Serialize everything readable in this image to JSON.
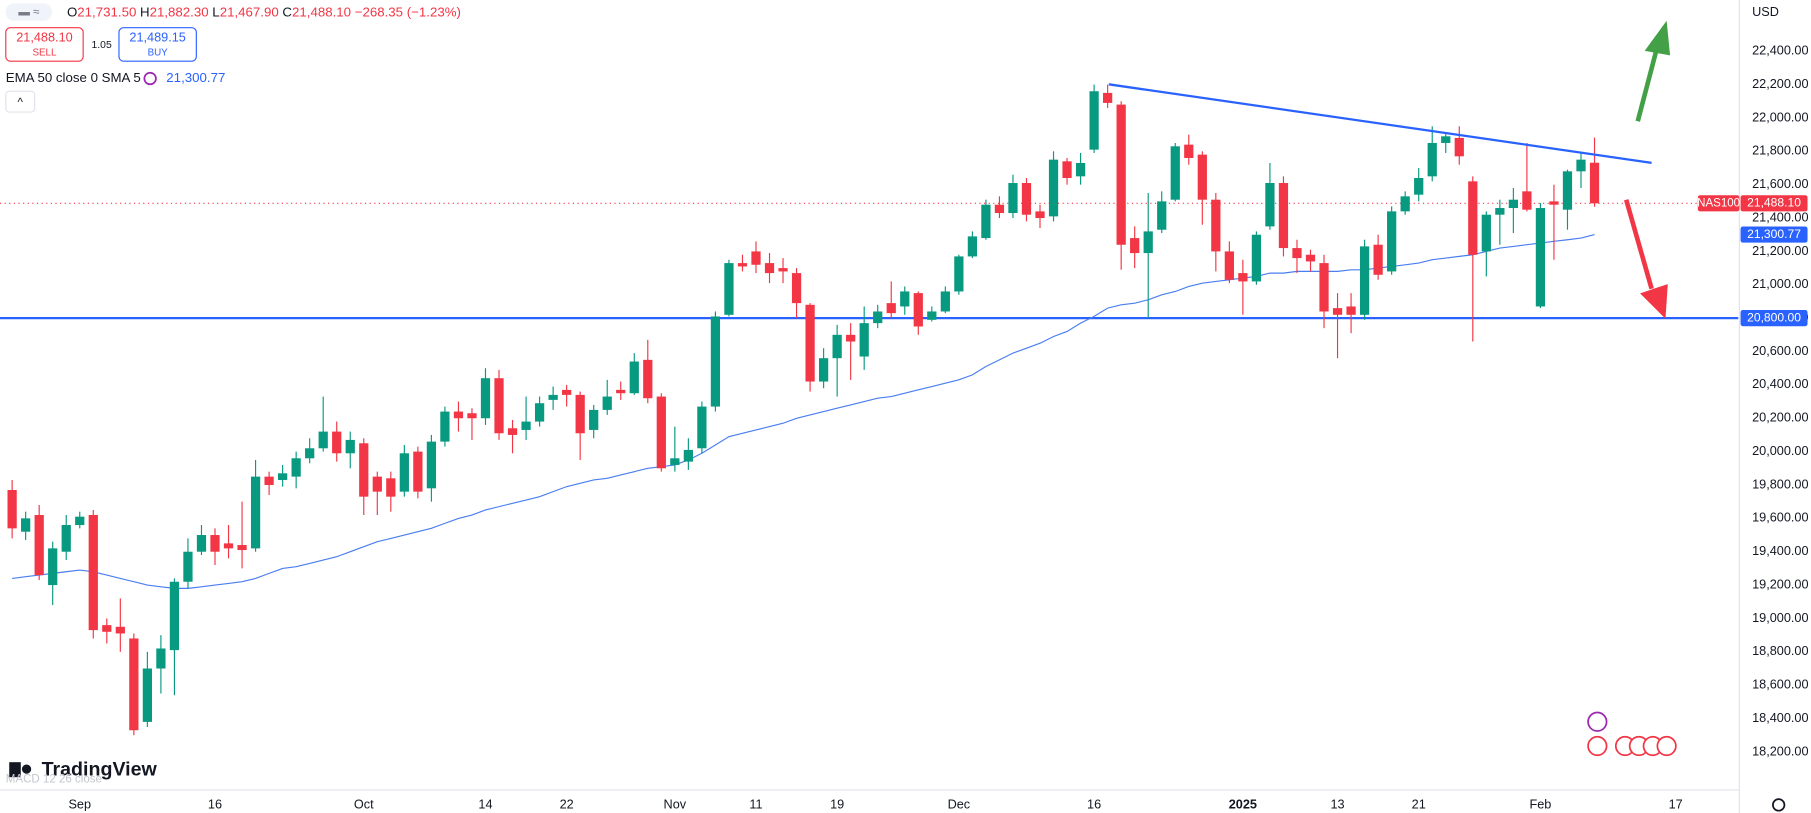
{
  "header": {
    "ohlc": [
      {
        "key": "O",
        "value": "21,731.50"
      },
      {
        "key": "H",
        "value": "21,882.30"
      },
      {
        "key": "L",
        "value": "21,467.90"
      },
      {
        "key": "C",
        "value": "21,488.10"
      }
    ],
    "change": "−268.35 (−1.23%)",
    "sell_price": "21,488.10",
    "sell": "SELL",
    "spread": "1.05",
    "buy_price": "21,489.15",
    "buy": "BUY"
  },
  "footer": {
    "logo": "TradingView",
    "indicator": "MACD 12 26 close"
  },
  "chart_data": {
    "type": "candlestick",
    "currency": "USD",
    "up_color": "#089981",
    "down_color": "#f23645",
    "ylim": [
      18000,
      22700
    ],
    "yticks": [
      {
        "value": 18200,
        "label": "18,200.00"
      },
      {
        "value": 18400,
        "label": "18,400.00"
      },
      {
        "value": 18600,
        "label": "18,600.00"
      },
      {
        "value": 18800,
        "label": "18,800.00"
      },
      {
        "value": 19000,
        "label": "19,000.00"
      },
      {
        "value": 19200,
        "label": "19,200.00"
      },
      {
        "value": 19400,
        "label": "19,400.00"
      },
      {
        "value": 19600,
        "label": "19,600.00"
      },
      {
        "value": 19800,
        "label": "19,800.00"
      },
      {
        "value": 20000,
        "label": "20,000.00"
      },
      {
        "value": 20200,
        "label": "20,200.00"
      },
      {
        "value": 20400,
        "label": "20,400.00"
      },
      {
        "value": 20600,
        "label": "20,600.00"
      },
      {
        "value": 20800,
        "label": "20,800.00"
      },
      {
        "value": 21000,
        "label": "21,000.00"
      },
      {
        "value": 21200,
        "label": "21,200.00"
      },
      {
        "value": 21400,
        "label": "21,400.00"
      },
      {
        "value": 21600,
        "label": "21,600.00"
      },
      {
        "value": 21800,
        "label": "21,800.00"
      },
      {
        "value": 22000,
        "label": "22,000.00"
      },
      {
        "value": 22200,
        "label": "22,200.00"
      },
      {
        "value": 22400,
        "label": "22,400.00"
      }
    ],
    "categories": [
      null,
      null,
      null,
      null,
      null,
      "Sep",
      null,
      null,
      null,
      null,
      null,
      null,
      null,
      null,
      null,
      "16",
      null,
      null,
      null,
      null,
      null,
      null,
      null,
      null,
      null,
      null,
      "Oct",
      null,
      null,
      null,
      null,
      null,
      null,
      null,
      null,
      "14",
      null,
      null,
      null,
      null,
      null,
      "22",
      null,
      null,
      null,
      null,
      null,
      null,
      null,
      "Nov",
      null,
      null,
      null,
      null,
      null,
      "11",
      null,
      null,
      null,
      null,
      null,
      "19",
      null,
      null,
      null,
      null,
      null,
      null,
      null,
      null,
      "Dec",
      null,
      null,
      null,
      null,
      null,
      null,
      null,
      null,
      null,
      "16",
      null,
      null,
      null,
      null,
      null,
      null,
      null,
      null,
      null,
      null,
      "2025",
      null,
      null,
      null,
      null,
      null,
      null,
      "13",
      null,
      null,
      null,
      null,
      null,
      "21",
      null,
      null,
      null,
      null,
      null,
      null,
      null,
      null,
      "Feb",
      null,
      null,
      null,
      null,
      null,
      null,
      null,
      null,
      null,
      "17"
    ],
    "open": [
      19770,
      19520,
      19620,
      19200,
      19400,
      19560,
      19620,
      18960,
      18950,
      18880,
      18380,
      18700,
      18810,
      19220,
      19400,
      19500,
      19450,
      19440,
      19420,
      19850,
      19830,
      19850,
      19960,
      20020,
      20120,
      19990,
      20050,
      19850,
      19840,
      19760,
      20000,
      19780,
      20060,
      20240,
      20230,
      20200,
      20440,
      20140,
      20130,
      20180,
      20310,
      20370,
      20340,
      20130,
      20250,
      20370,
      20350,
      20550,
      20330,
      19920,
      19940,
      20020,
      20270,
      20820,
      21130,
      21200,
      21130,
      21100,
      21070,
      20880,
      20420,
      20560,
      20700,
      20570,
      20770,
      20890,
      20870,
      20950,
      20790,
      20840,
      20960,
      21170,
      21280,
      21480,
      21430,
      21610,
      21440,
      21410,
      21740,
      21650,
      21810,
      22150,
      22080,
      21280,
      21190,
      21330,
      21510,
      21840,
      21780,
      21510,
      21200,
      21070,
      21020,
      21350,
      21610,
      21220,
      21180,
      21130,
      20860,
      20870,
      20820,
      21240,
      21080,
      21440,
      21540,
      21650,
      21850,
      21880,
      21620,
      21200,
      21420,
      21460,
      21560,
      20870,
      21500,
      21450,
      21680,
      21731.5,
      null,
      null,
      null,
      null,
      null,
      null
    ],
    "high": [
      19830,
      19640,
      19680,
      19460,
      19620,
      19640,
      19650,
      19000,
      19120,
      18910,
      18800,
      18900,
      19240,
      19480,
      19560,
      19540,
      19560,
      19700,
      19950,
      19880,
      19920,
      20000,
      20080,
      20330,
      20180,
      20120,
      20080,
      19880,
      19880,
      20040,
      20030,
      20100,
      20270,
      20300,
      20260,
      20500,
      20490,
      20190,
      20330,
      20330,
      20390,
      20400,
      20360,
      20280,
      20430,
      20420,
      20590,
      20670,
      20350,
      20150,
      20080,
      20300,
      20840,
      21150,
      21180,
      21260,
      21190,
      21160,
      21100,
      20890,
      20620,
      20760,
      20770,
      20870,
      20880,
      21020,
      20990,
      20960,
      20870,
      20990,
      21180,
      21320,
      21510,
      21530,
      21660,
      21640,
      21480,
      21800,
      21760,
      21790,
      22200,
      22200,
      22100,
      21350,
      21550,
      21560,
      21850,
      21900,
      21800,
      21550,
      21260,
      21150,
      21320,
      21730,
      21650,
      21270,
      21210,
      21180,
      20950,
      20950,
      21270,
      21300,
      21470,
      21560,
      21700,
      21950,
      21910,
      21950,
      21650,
      21440,
      21510,
      21580,
      21850,
      21490,
      21600,
      21690,
      21790,
      21882.3,
      null,
      null,
      null,
      null,
      null,
      null
    ],
    "low": [
      19480,
      19470,
      19230,
      19080,
      19350,
      19540,
      18880,
      18850,
      18800,
      18300,
      18350,
      18550,
      18540,
      19180,
      19380,
      19320,
      19360,
      19300,
      19400,
      19740,
      19790,
      19780,
      19930,
      20000,
      19940,
      19900,
      19620,
      19620,
      19640,
      19730,
      19720,
      19700,
      20030,
      20120,
      20070,
      20160,
      20070,
      19990,
      20070,
      20150,
      20250,
      20270,
      19950,
      20080,
      20220,
      20310,
      20340,
      20290,
      19880,
      19880,
      19890,
      19990,
      20240,
      20810,
      21080,
      21070,
      21010,
      21010,
      20800,
      20360,
      20380,
      20330,
      20430,
      20490,
      20740,
      20800,
      20820,
      20700,
      20780,
      20830,
      20940,
      21160,
      21270,
      21400,
      21400,
      21380,
      21340,
      21380,
      21600,
      21600,
      21790,
      22060,
      21090,
      21100,
      20800,
      21310,
      21500,
      21720,
      21360,
      21080,
      21010,
      20820,
      21000,
      21330,
      21170,
      21070,
      21080,
      20740,
      20560,
      20710,
      20790,
      21030,
      21060,
      21420,
      21500,
      21620,
      21790,
      21720,
      20660,
      21050,
      21240,
      21310,
      21440,
      20860,
      21150,
      21330,
      21580,
      21467.9,
      null,
      null,
      null,
      null,
      null,
      null
    ],
    "close": [
      19540,
      19600,
      19260,
      19420,
      19560,
      19610,
      18930,
      18920,
      18910,
      18330,
      18700,
      18820,
      19220,
      19400,
      19500,
      19400,
      19420,
      19410,
      19850,
      19800,
      19870,
      19960,
      20020,
      20120,
      19990,
      20070,
      19730,
      19760,
      19730,
      19990,
      19760,
      20060,
      20240,
      20200,
      20200,
      20440,
      20110,
      20100,
      20180,
      20290,
      20340,
      20340,
      20110,
      20250,
      20330,
      20350,
      20540,
      20320,
      19900,
      19960,
      20010,
      20270,
      20810,
      21130,
      21110,
      21120,
      21070,
      21080,
      20890,
      20420,
      20560,
      20700,
      20660,
      20770,
      20840,
      20830,
      20960,
      20750,
      20840,
      20960,
      21170,
      21290,
      21480,
      21430,
      21610,
      21420,
      21400,
      21750,
      21640,
      21730,
      22160,
      22090,
      21240,
      21190,
      21320,
      21500,
      21830,
      21760,
      21510,
      21200,
      21030,
      21020,
      21300,
      21610,
      21220,
      21160,
      21140,
      20840,
      20820,
      20820,
      21230,
      21060,
      21440,
      21530,
      21640,
      21850,
      21890,
      21770,
      21180,
      21420,
      21460,
      21510,
      21450,
      21460,
      21480,
      21680,
      21750,
      21488.1,
      null,
      null,
      null,
      null,
      null,
      null
    ],
    "ema": {
      "name": "EMA 50 close 0 SMA 5",
      "color": "#4a7ef0",
      "last_label": "21,300.77",
      "values": [
        19240,
        19250,
        19260,
        19270,
        19280,
        19290,
        19280,
        19260,
        19240,
        19220,
        19200,
        19190,
        19180,
        19180,
        19190,
        19200,
        19210,
        19220,
        19240,
        19270,
        19300,
        19310,
        19330,
        19350,
        19370,
        19400,
        19430,
        19460,
        19480,
        19500,
        19520,
        19540,
        19570,
        19600,
        19620,
        19650,
        19670,
        19690,
        19710,
        19730,
        19760,
        19790,
        19810,
        19830,
        19840,
        19860,
        19880,
        19900,
        19910,
        19920,
        19950,
        19990,
        20040,
        20090,
        20110,
        20130,
        20150,
        20170,
        20200,
        20220,
        20240,
        20260,
        20280,
        20300,
        20320,
        20330,
        20350,
        20370,
        20390,
        20410,
        20430,
        20460,
        20510,
        20550,
        20590,
        20620,
        20650,
        20690,
        20720,
        20770,
        20810,
        20860,
        20880,
        20890,
        20910,
        20940,
        20960,
        20990,
        21010,
        21020,
        21030,
        21040,
        21050,
        21070,
        21070,
        21080,
        21080,
        21080,
        21080,
        21090,
        21090,
        21100,
        21110,
        21120,
        21130,
        21150,
        21160,
        21170,
        21180,
        21200,
        21220,
        21230,
        21240,
        21250,
        21260,
        21270,
        21280,
        21300.77,
        null,
        null,
        null,
        null,
        null,
        null
      ]
    },
    "last_price": {
      "name": "NAS100",
      "value": 21488.1,
      "label": "21,488.10",
      "color": "#f23645"
    },
    "hline": {
      "value": 20800,
      "label": "20,800.00",
      "color": "#2962ff"
    }
  }
}
